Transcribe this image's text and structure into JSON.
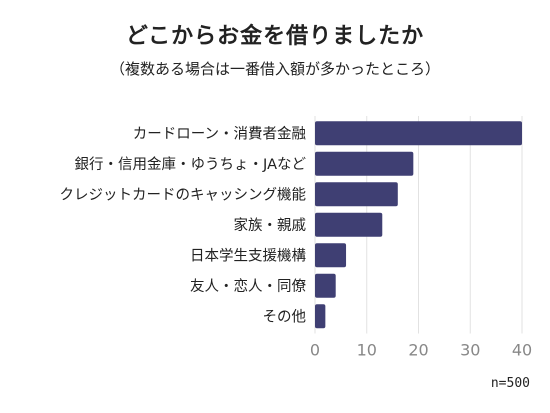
{
  "chart_data": {
    "type": "bar",
    "orientation": "horizontal",
    "title": "どこからお金を借りましたか",
    "subtitle": "（複数ある場合は一番借入額が多かったところ）",
    "categories": [
      "カードローン・消費者金融",
      "銀行・信用金庫・ゆうちょ・JAなど",
      "クレジットカードのキャッシング機能",
      "家族・親戚",
      "日本学生支援機構",
      "友人・恋人・同僚",
      "その他"
    ],
    "values": [
      40,
      19,
      16,
      13,
      6,
      4,
      2
    ],
    "xlim": [
      0,
      40
    ],
    "xticks": [
      0,
      10,
      20,
      30,
      40
    ],
    "grid": true,
    "bar_color": "#3f3f73",
    "note": "n=500"
  }
}
